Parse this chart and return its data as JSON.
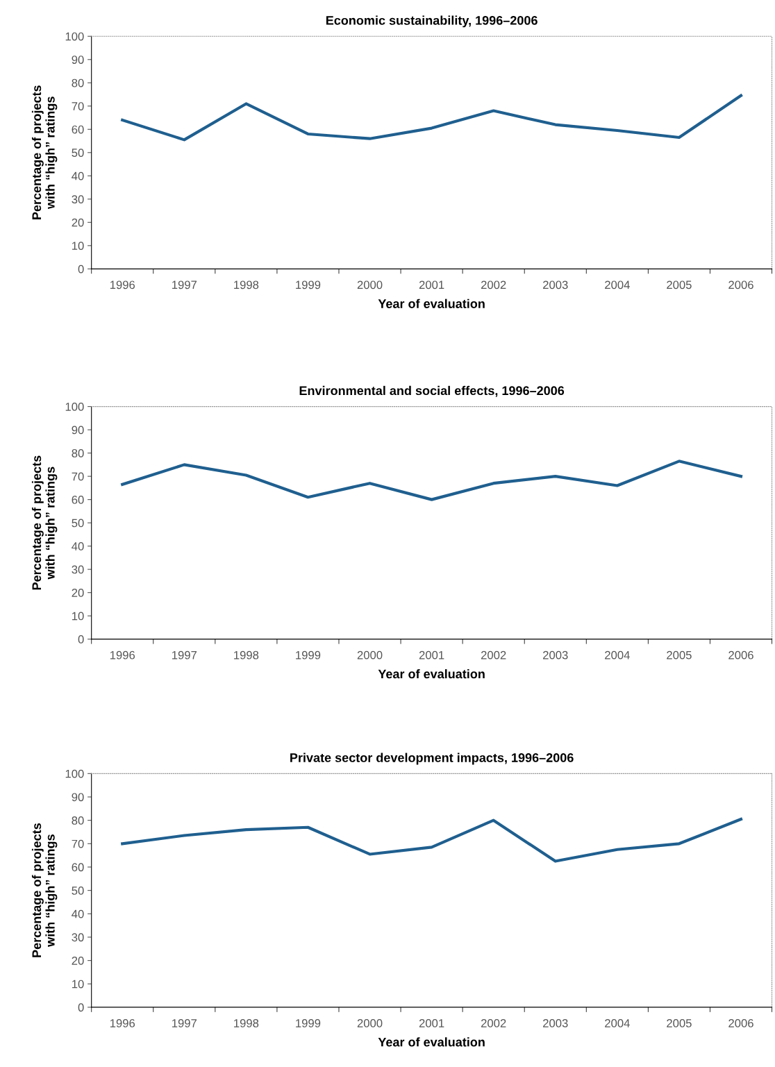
{
  "chart_data": [
    {
      "type": "line",
      "title": "Economic sustainability, 1996–2006",
      "xlabel": "Year of evaluation",
      "ylabel": "Percentage of projects\nwith “high” ratings",
      "categories": [
        "1996",
        "1997",
        "1998",
        "1999",
        "2000",
        "2001",
        "2002",
        "2003",
        "2004",
        "2005",
        "2006"
      ],
      "series": [
        {
          "color": "#1f5f8f",
          "values": [
            64,
            55.5,
            71,
            58,
            56,
            60.5,
            68,
            62,
            59.5,
            56.5,
            74.5
          ]
        }
      ],
      "ylim": [
        0,
        100
      ],
      "yticks": [
        0,
        10,
        20,
        30,
        40,
        50,
        60,
        70,
        80,
        90,
        100
      ]
    },
    {
      "type": "line",
      "title": "Environmental and social effects, 1996–2006",
      "xlabel": "Year of evaluation",
      "ylabel": "Percentage of projects\nwith “high” ratings",
      "categories": [
        "1996",
        "1997",
        "1998",
        "1999",
        "2000",
        "2001",
        "2002",
        "2003",
        "2004",
        "2005",
        "2006"
      ],
      "series": [
        {
          "color": "#1f5f8f",
          "values": [
            66.5,
            75,
            70.5,
            61,
            67,
            60,
            67,
            70,
            66,
            76.5,
            70
          ]
        }
      ],
      "ylim": [
        0,
        100
      ],
      "yticks": [
        0,
        10,
        20,
        30,
        40,
        50,
        60,
        70,
        80,
        90,
        100
      ]
    },
    {
      "type": "line",
      "title": "Private sector development impacts, 1996–2006",
      "xlabel": "Year of evaluation",
      "ylabel": "Percentage of projects\nwith “high” ratings",
      "categories": [
        "1996",
        "1997",
        "1998",
        "1999",
        "2000",
        "2001",
        "2002",
        "2003",
        "2004",
        "2005",
        "2006"
      ],
      "series": [
        {
          "color": "#1f5f8f",
          "values": [
            70,
            73.5,
            76,
            77,
            65.5,
            68.5,
            80,
            62.5,
            67.5,
            70,
            80.5
          ]
        }
      ],
      "ylim": [
        0,
        100
      ],
      "yticks": [
        0,
        10,
        20,
        30,
        40,
        50,
        60,
        70,
        80,
        90,
        100
      ]
    }
  ]
}
